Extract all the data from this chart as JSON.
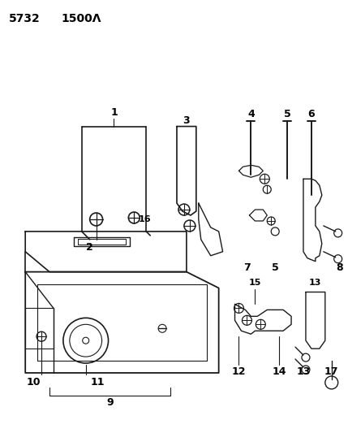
{
  "bg_color": "#ffffff",
  "line_color": "#1a1a1a",
  "title1": "5732",
  "title2": "1500Λ",
  "figsize": [
    4.29,
    5.33
  ],
  "dpi": 100
}
